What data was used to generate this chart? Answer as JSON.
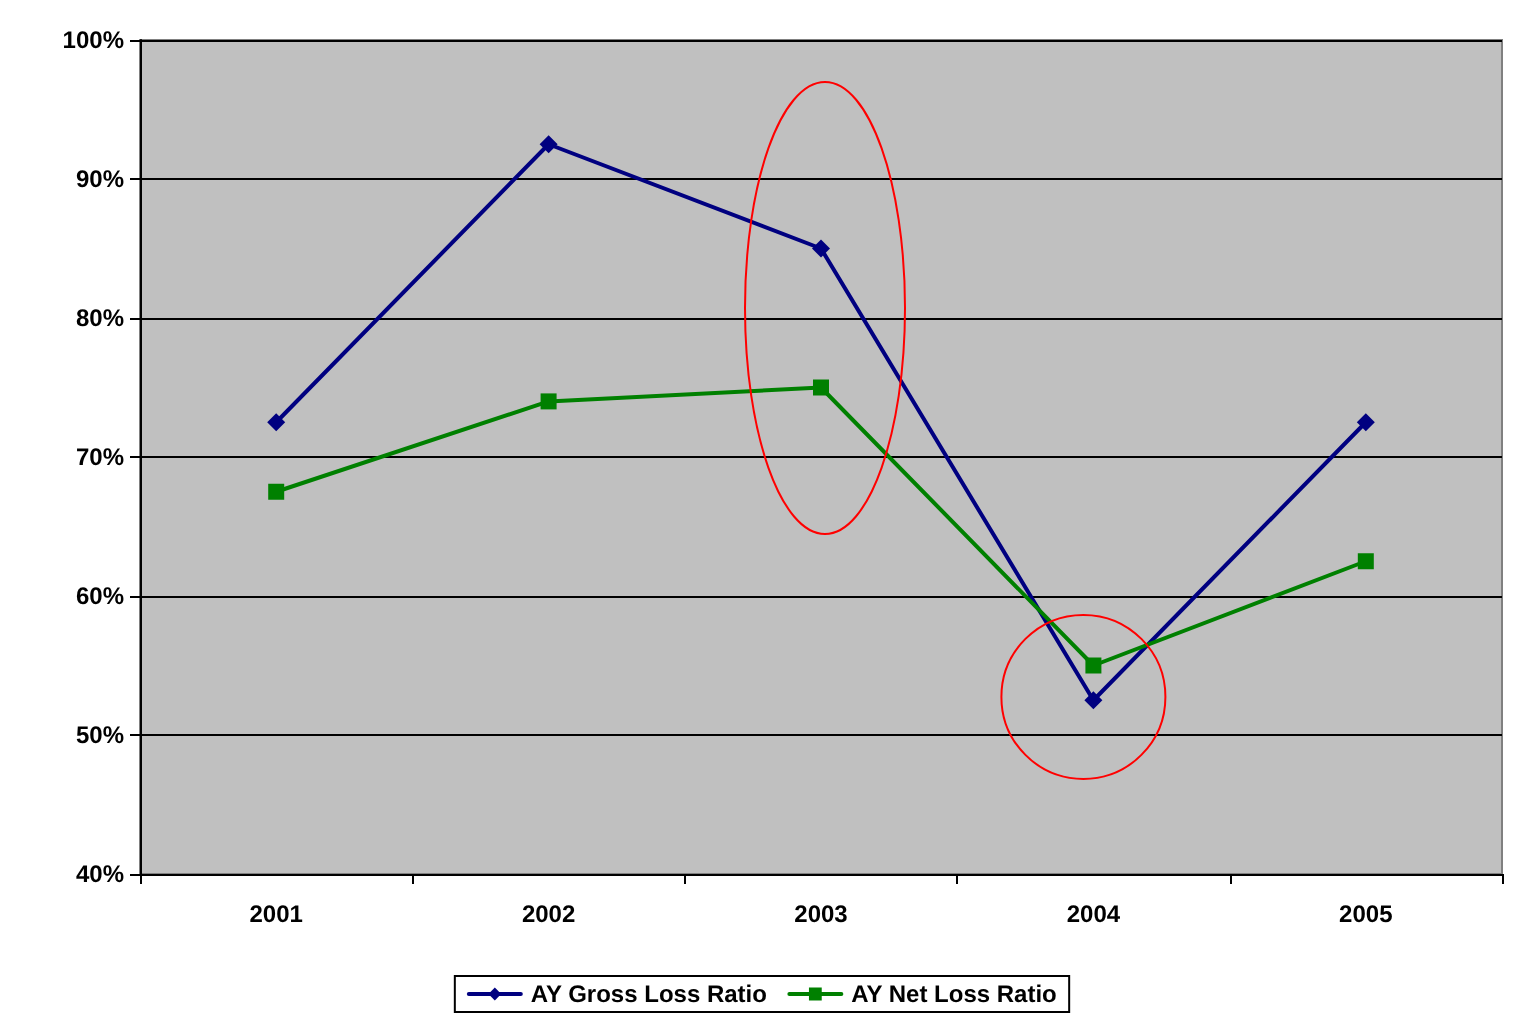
{
  "chart_data": {
    "type": "line",
    "categories": [
      "2001",
      "2002",
      "2003",
      "2004",
      "2005"
    ],
    "series": [
      {
        "name": "AY Gross Loss Ratio",
        "color": "#000080",
        "marker": "diamond",
        "values": [
          72.5,
          92.5,
          85,
          52.5,
          72.5
        ]
      },
      {
        "name": "AY Net Loss Ratio",
        "color": "#008000",
        "marker": "square",
        "values": [
          67.5,
          74,
          75,
          55,
          62.5
        ]
      }
    ],
    "ylim": [
      40,
      100
    ],
    "yticks": [
      {
        "value": 40,
        "label": "40%"
      },
      {
        "value": 50,
        "label": "50%"
      },
      {
        "value": 60,
        "label": "60%"
      },
      {
        "value": 70,
        "label": "70%"
      },
      {
        "value": 80,
        "label": "80%"
      },
      {
        "value": 90,
        "label": "90%"
      },
      {
        "value": 100,
        "label": "100%"
      }
    ],
    "grid": "y",
    "legend": "bottom",
    "line_style": "solid"
  }
}
